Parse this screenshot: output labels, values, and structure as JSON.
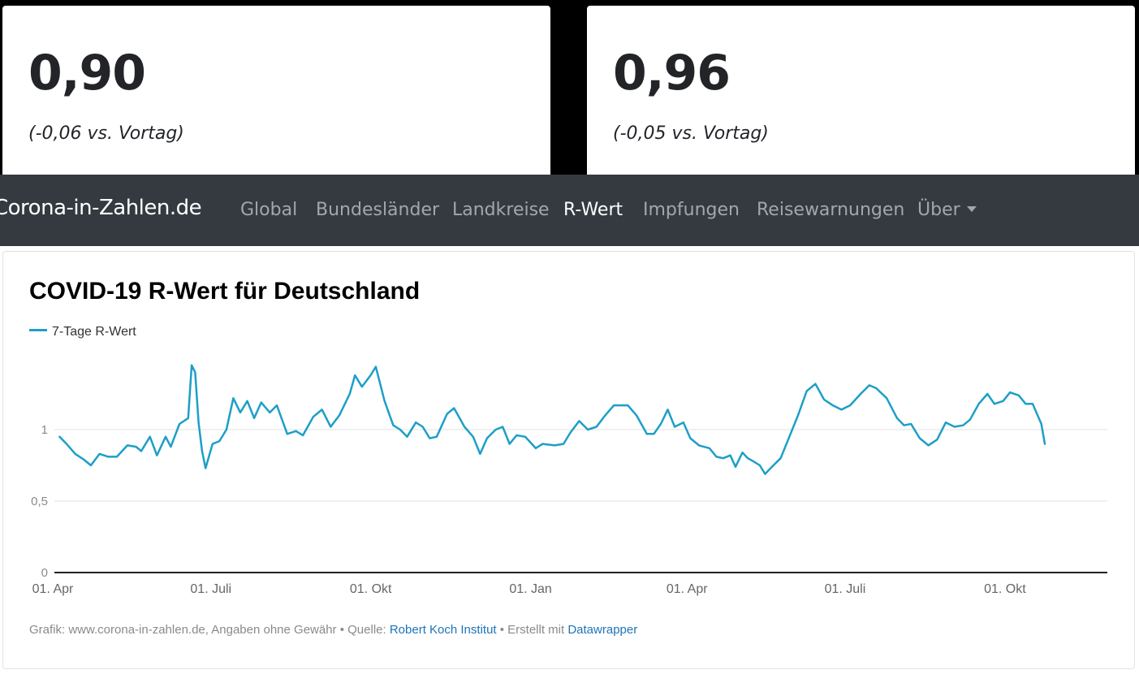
{
  "cards": [
    {
      "value": "0,90",
      "change": "(-0,06 vs. Vortag)"
    },
    {
      "value": "0,96",
      "change": "(-0,05 vs. Vortag)"
    }
  ],
  "navbar": {
    "brand": "Corona-in-Zahlen.de",
    "items": [
      {
        "label": "Global"
      },
      {
        "label": "Bundesländer"
      },
      {
        "label": "Landkreise"
      },
      {
        "label": "R-Wert",
        "active": true
      },
      {
        "label": "Impfungen"
      },
      {
        "label": "Reisewarnungen"
      },
      {
        "label": "Über",
        "dropdown": true
      }
    ]
  },
  "chart": {
    "title": "COVID-19 R-Wert für Deutschland",
    "legend_label": "7-Tage R-Wert",
    "footer_prefix": "Grafik: www.corona-in-zahlen.de, Angaben ohne Gewähr • Quelle: ",
    "footer_source": "Robert Koch Institut",
    "footer_mid": " • Erstellt mit ",
    "footer_tool": "Datawrapper",
    "line_color": "#1d9fc7"
  },
  "chart_data": {
    "type": "line",
    "title": "COVID-19 R-Wert für Deutschland",
    "xlabel": "",
    "ylabel": "",
    "ylim": [
      0,
      1.6
    ],
    "yticks": [
      {
        "value": 0,
        "label": "0"
      },
      {
        "value": 0.5,
        "label": "0,5"
      },
      {
        "value": 1,
        "label": "1"
      }
    ],
    "xticks": [
      {
        "value": "2020-04-01",
        "label": "01. Apr"
      },
      {
        "value": "2020-07-01",
        "label": "01. Juli"
      },
      {
        "value": "2020-10-01",
        "label": "01. Okt"
      },
      {
        "value": "2021-01-01",
        "label": "01. Jan"
      },
      {
        "value": "2021-04-01",
        "label": "01. Apr"
      },
      {
        "value": "2021-07-01",
        "label": "01. Juli"
      },
      {
        "value": "2021-10-01",
        "label": "01. Okt"
      }
    ],
    "xlim": [
      "2020-04-01",
      "2021-11-28"
    ],
    "grid": true,
    "legend_position": "top-left",
    "series": [
      {
        "name": "7-Tage R-Wert",
        "points": [
          [
            "2020-04-04",
            0.95
          ],
          [
            "2020-04-08",
            0.9
          ],
          [
            "2020-04-13",
            0.83
          ],
          [
            "2020-04-18",
            0.79
          ],
          [
            "2020-04-22",
            0.75
          ],
          [
            "2020-04-27",
            0.83
          ],
          [
            "2020-05-02",
            0.81
          ],
          [
            "2020-05-07",
            0.81
          ],
          [
            "2020-05-13",
            0.89
          ],
          [
            "2020-05-18",
            0.88
          ],
          [
            "2020-05-21",
            0.85
          ],
          [
            "2020-05-26",
            0.95
          ],
          [
            "2020-05-30",
            0.82
          ],
          [
            "2020-06-04",
            0.95
          ],
          [
            "2020-06-07",
            0.88
          ],
          [
            "2020-06-12",
            1.04
          ],
          [
            "2020-06-17",
            1.08
          ],
          [
            "2020-06-19",
            1.45
          ],
          [
            "2020-06-21",
            1.4
          ],
          [
            "2020-06-23",
            1.05
          ],
          [
            "2020-06-25",
            0.85
          ],
          [
            "2020-06-27",
            0.73
          ],
          [
            "2020-07-01",
            0.9
          ],
          [
            "2020-07-05",
            0.92
          ],
          [
            "2020-07-09",
            1.0
          ],
          [
            "2020-07-13",
            1.22
          ],
          [
            "2020-07-17",
            1.12
          ],
          [
            "2020-07-21",
            1.2
          ],
          [
            "2020-07-25",
            1.08
          ],
          [
            "2020-07-29",
            1.19
          ],
          [
            "2020-08-03",
            1.12
          ],
          [
            "2020-08-07",
            1.17
          ],
          [
            "2020-08-13",
            0.97
          ],
          [
            "2020-08-18",
            0.99
          ],
          [
            "2020-08-22",
            0.96
          ],
          [
            "2020-08-28",
            1.09
          ],
          [
            "2020-09-02",
            1.14
          ],
          [
            "2020-09-07",
            1.02
          ],
          [
            "2020-09-12",
            1.1
          ],
          [
            "2020-09-18",
            1.25
          ],
          [
            "2020-09-21",
            1.38
          ],
          [
            "2020-09-25",
            1.3
          ],
          [
            "2020-09-30",
            1.38
          ],
          [
            "2020-10-03",
            1.44
          ],
          [
            "2020-10-08",
            1.2
          ],
          [
            "2020-10-13",
            1.03
          ],
          [
            "2020-10-17",
            1.0
          ],
          [
            "2020-10-21",
            0.95
          ],
          [
            "2020-10-26",
            1.05
          ],
          [
            "2020-10-30",
            1.02
          ],
          [
            "2020-11-03",
            0.94
          ],
          [
            "2020-11-07",
            0.95
          ],
          [
            "2020-11-13",
            1.11
          ],
          [
            "2020-11-17",
            1.15
          ],
          [
            "2020-11-23",
            1.02
          ],
          [
            "2020-11-28",
            0.95
          ],
          [
            "2020-12-02",
            0.83
          ],
          [
            "2020-12-06",
            0.94
          ],
          [
            "2020-12-11",
            1.0
          ],
          [
            "2020-12-15",
            1.02
          ],
          [
            "2020-12-19",
            0.9
          ],
          [
            "2020-12-23",
            0.96
          ],
          [
            "2020-12-28",
            0.95
          ],
          [
            "2021-01-03",
            0.87
          ],
          [
            "2021-01-07",
            0.9
          ],
          [
            "2021-01-14",
            0.89
          ],
          [
            "2021-01-19",
            0.9
          ],
          [
            "2021-01-23",
            0.98
          ],
          [
            "2021-01-28",
            1.06
          ],
          [
            "2021-02-02",
            1.0
          ],
          [
            "2021-02-07",
            1.02
          ],
          [
            "2021-02-12",
            1.1
          ],
          [
            "2021-02-17",
            1.17
          ],
          [
            "2021-02-25",
            1.17
          ],
          [
            "2021-03-02",
            1.1
          ],
          [
            "2021-03-08",
            0.97
          ],
          [
            "2021-03-12",
            0.97
          ],
          [
            "2021-03-16",
            1.04
          ],
          [
            "2021-03-20",
            1.14
          ],
          [
            "2021-03-24",
            1.02
          ],
          [
            "2021-03-29",
            1.05
          ],
          [
            "2021-04-02",
            0.94
          ],
          [
            "2021-04-07",
            0.89
          ],
          [
            "2021-04-13",
            0.87
          ],
          [
            "2021-04-17",
            0.81
          ],
          [
            "2021-04-21",
            0.8
          ],
          [
            "2021-04-25",
            0.82
          ],
          [
            "2021-04-28",
            0.74
          ],
          [
            "2021-05-02",
            0.84
          ],
          [
            "2021-05-05",
            0.8
          ],
          [
            "2021-05-08",
            0.78
          ],
          [
            "2021-05-12",
            0.75
          ],
          [
            "2021-05-15",
            0.69
          ],
          [
            "2021-05-19",
            0.74
          ],
          [
            "2021-05-24",
            0.8
          ],
          [
            "2021-05-29",
            0.95
          ],
          [
            "2021-06-03",
            1.1
          ],
          [
            "2021-06-08",
            1.27
          ],
          [
            "2021-06-13",
            1.32
          ],
          [
            "2021-06-18",
            1.21
          ],
          [
            "2021-06-23",
            1.17
          ],
          [
            "2021-06-28",
            1.14
          ],
          [
            "2021-07-03",
            1.17
          ],
          [
            "2021-07-09",
            1.25
          ],
          [
            "2021-07-14",
            1.31
          ],
          [
            "2021-07-18",
            1.29
          ],
          [
            "2021-07-24",
            1.22
          ],
          [
            "2021-07-30",
            1.08
          ],
          [
            "2021-08-03",
            1.03
          ],
          [
            "2021-08-07",
            1.04
          ],
          [
            "2021-08-12",
            0.94
          ],
          [
            "2021-08-17",
            0.89
          ],
          [
            "2021-08-22",
            0.93
          ],
          [
            "2021-08-27",
            1.05
          ],
          [
            "2021-09-01",
            1.02
          ],
          [
            "2021-09-06",
            1.03
          ],
          [
            "2021-09-10",
            1.07
          ],
          [
            "2021-09-15",
            1.18
          ],
          [
            "2021-09-20",
            1.25
          ],
          [
            "2021-09-24",
            1.18
          ],
          [
            "2021-09-29",
            1.2
          ],
          [
            "2021-10-03",
            1.26
          ],
          [
            "2021-10-08",
            1.24
          ],
          [
            "2021-10-12",
            1.18
          ],
          [
            "2021-10-16",
            1.18
          ],
          [
            "2021-10-21",
            1.04
          ],
          [
            "2021-10-23",
            0.9
          ]
        ]
      }
    ]
  }
}
